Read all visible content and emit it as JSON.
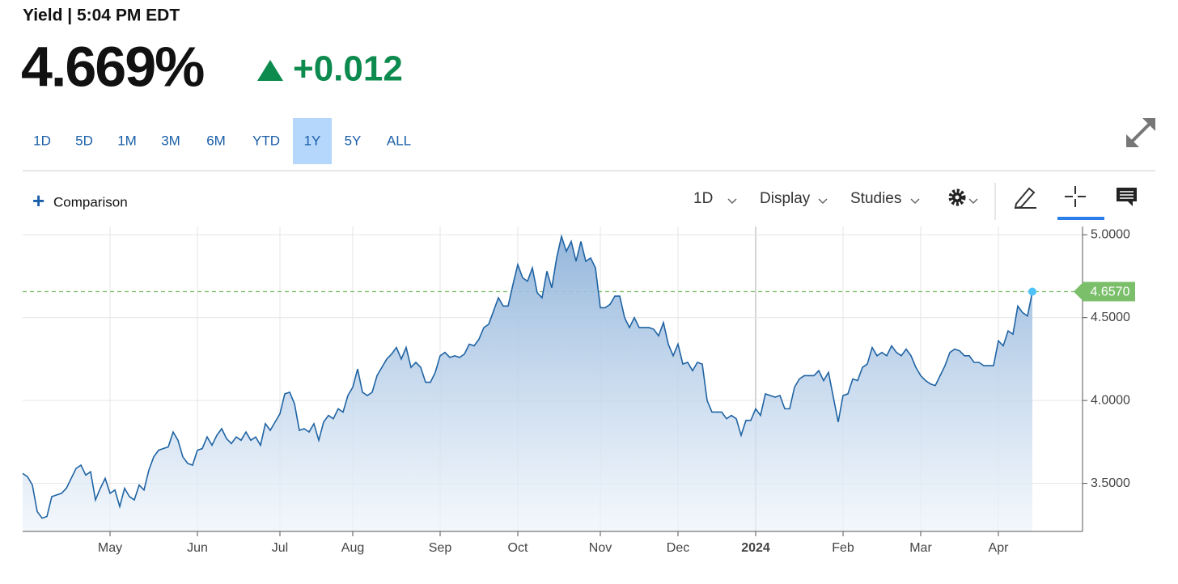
{
  "header": {
    "title": "Yield | 5:04 PM EDT",
    "price": "4.669%",
    "change": "+0.012"
  },
  "range_buttons": {
    "items": [
      "1D",
      "5D",
      "1M",
      "3M",
      "6M",
      "YTD",
      "1Y",
      "5Y",
      "ALL"
    ],
    "selected": "1Y"
  },
  "toolbar": {
    "comparison": "Comparison",
    "interval": "1D",
    "display": "Display",
    "studies": "Studies"
  },
  "chart_data": {
    "type": "area",
    "color": "#1f63a3",
    "grid": true,
    "y_axis_side": "right",
    "ylim": [
      3.21,
      5.05
    ],
    "yticks": [
      {
        "value": 3.5,
        "label": "3.5000"
      },
      {
        "value": 4,
        "label": "4.0000"
      },
      {
        "value": 4.5,
        "label": "4.5000"
      },
      {
        "value": 5,
        "label": "5.0000"
      }
    ],
    "reference_line": {
      "value": 4.657,
      "label": "4.6570",
      "color": "#7cbf6b"
    },
    "categories": [
      null,
      null,
      null,
      null,
      null,
      null,
      null,
      null,
      null,
      null,
      null,
      null,
      null,
      null,
      null,
      null,
      null,
      null,
      "May",
      null,
      null,
      null,
      null,
      null,
      null,
      null,
      null,
      null,
      null,
      null,
      null,
      null,
      null,
      null,
      null,
      null,
      "Jun",
      null,
      null,
      null,
      null,
      null,
      null,
      null,
      null,
      null,
      null,
      null,
      null,
      null,
      null,
      null,
      null,
      "Jul",
      null,
      null,
      null,
      null,
      null,
      null,
      null,
      null,
      null,
      null,
      null,
      null,
      null,
      null,
      "Aug",
      null,
      null,
      null,
      null,
      null,
      null,
      null,
      null,
      null,
      null,
      null,
      null,
      null,
      null,
      null,
      null,
      null,
      "Sep",
      null,
      null,
      null,
      null,
      null,
      null,
      null,
      null,
      null,
      null,
      null,
      null,
      null,
      null,
      null,
      "Oct",
      null,
      null,
      null,
      null,
      null,
      null,
      null,
      null,
      null,
      null,
      null,
      null,
      null,
      null,
      null,
      null,
      "Nov",
      null,
      null,
      null,
      null,
      null,
      null,
      null,
      null,
      null,
      null,
      null,
      null,
      null,
      null,
      null,
      "Dec",
      null,
      null,
      null,
      null,
      null,
      null,
      null,
      null,
      null,
      null,
      null,
      null,
      null,
      null,
      null,
      "2024",
      null,
      null,
      null,
      null,
      null,
      null,
      null,
      null,
      null,
      null,
      null,
      null,
      null,
      null,
      null,
      null,
      null,
      "Feb",
      null,
      null,
      null,
      null,
      null,
      null,
      null,
      null,
      null,
      null,
      null,
      null,
      null,
      null,
      null,
      "Mar",
      null,
      null,
      null,
      null,
      null,
      null,
      null,
      null,
      null,
      null,
      null,
      null,
      null,
      null,
      null,
      "Apr",
      null,
      null,
      null,
      null,
      null,
      null,
      null
    ],
    "values": [
      3.56,
      3.54,
      3.49,
      3.33,
      3.29,
      3.3,
      3.42,
      3.43,
      3.44,
      3.47,
      3.53,
      3.59,
      3.61,
      3.55,
      3.57,
      3.4,
      3.47,
      3.53,
      3.44,
      3.46,
      3.36,
      3.47,
      3.42,
      3.4,
      3.49,
      3.46,
      3.58,
      3.66,
      3.7,
      3.71,
      3.72,
      3.81,
      3.76,
      3.66,
      3.62,
      3.61,
      3.7,
      3.71,
      3.78,
      3.73,
      3.79,
      3.83,
      3.77,
      3.74,
      3.78,
      3.76,
      3.81,
      3.76,
      3.78,
      3.73,
      3.86,
      3.82,
      3.87,
      3.92,
      4.04,
      4.05,
      3.98,
      3.82,
      3.83,
      3.81,
      3.86,
      3.76,
      3.87,
      3.91,
      3.89,
      3.95,
      3.93,
      4.03,
      4.08,
      4.19,
      4.05,
      4.03,
      4.05,
      4.15,
      4.2,
      4.25,
      4.28,
      4.32,
      4.25,
      4.32,
      4.2,
      4.23,
      4.2,
      4.11,
      4.11,
      4.17,
      4.27,
      4.29,
      4.26,
      4.27,
      4.26,
      4.28,
      4.34,
      4.33,
      4.37,
      4.44,
      4.46,
      4.54,
      4.62,
      4.57,
      4.57,
      4.7,
      4.82,
      4.74,
      4.72,
      4.8,
      4.65,
      4.62,
      4.78,
      4.68,
      4.86,
      4.99,
      4.9,
      4.96,
      4.84,
      4.96,
      4.84,
      4.86,
      4.8,
      4.56,
      4.56,
      4.58,
      4.63,
      4.63,
      4.5,
      4.44,
      4.5,
      4.44,
      4.44,
      4.44,
      4.43,
      4.39,
      4.47,
      4.34,
      4.27,
      4.34,
      4.22,
      4.23,
      4.18,
      4.23,
      4.22,
      4.0,
      3.93,
      3.93,
      3.93,
      3.89,
      3.91,
      3.89,
      3.79,
      3.88,
      3.88,
      3.95,
      3.91,
      4.04,
      4.03,
      4.02,
      4.03,
      3.95,
      3.95,
      4.08,
      4.13,
      4.15,
      4.15,
      4.15,
      4.18,
      4.12,
      4.17,
      4.02,
      3.87,
      4.03,
      4.04,
      4.13,
      4.12,
      4.2,
      4.22,
      4.32,
      4.27,
      4.29,
      4.27,
      4.33,
      4.29,
      4.27,
      4.31,
      4.27,
      4.2,
      4.15,
      4.12,
      4.1,
      4.09,
      4.15,
      4.21,
      4.29,
      4.31,
      4.3,
      4.27,
      4.27,
      4.23,
      4.23,
      4.21,
      4.21,
      4.21,
      4.36,
      4.33,
      4.42,
      4.4,
      4.57,
      4.53,
      4.51,
      4.657
    ]
  }
}
